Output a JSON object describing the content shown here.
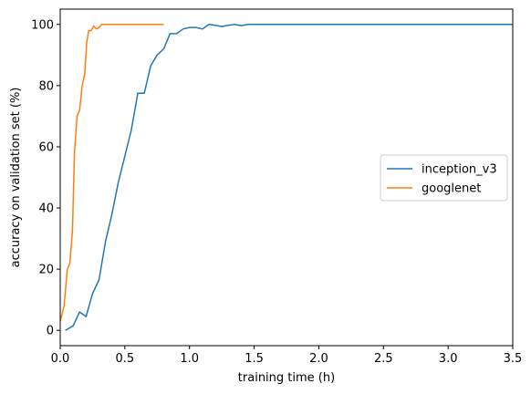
{
  "chart_data": {
    "type": "line",
    "xlabel": "training time (h)",
    "ylabel": "accuracy on validation set (%)",
    "xlim": [
      0.0,
      3.5
    ],
    "ylim": [
      -5,
      105
    ],
    "xticks": [
      0.0,
      0.5,
      1.0,
      1.5,
      2.0,
      2.5,
      3.0,
      3.5
    ],
    "xtick_labels": [
      "0.0",
      "0.5",
      "1.0",
      "1.5",
      "2.0",
      "2.5",
      "3.0",
      "3.5"
    ],
    "yticks": [
      0,
      20,
      40,
      60,
      80,
      100
    ],
    "ytick_labels": [
      "0",
      "20",
      "40",
      "60",
      "80",
      "100"
    ],
    "grid": false,
    "legend_position": "center-right",
    "series": [
      {
        "name": "inception_v3",
        "color": "#1f77b4",
        "points": [
          [
            0.04,
            0
          ],
          [
            0.1,
            1.5
          ],
          [
            0.15,
            6
          ],
          [
            0.2,
            4.5
          ],
          [
            0.25,
            12
          ],
          [
            0.3,
            16.5
          ],
          [
            0.35,
            29
          ],
          [
            0.4,
            38
          ],
          [
            0.45,
            48.5
          ],
          [
            0.5,
            57
          ],
          [
            0.55,
            65.5
          ],
          [
            0.6,
            77.5
          ],
          [
            0.65,
            77.5
          ],
          [
            0.7,
            86.5
          ],
          [
            0.75,
            90
          ],
          [
            0.8,
            92
          ],
          [
            0.85,
            97
          ],
          [
            0.9,
            97
          ],
          [
            0.95,
            98.5
          ],
          [
            1.0,
            99
          ],
          [
            1.05,
            99
          ],
          [
            1.1,
            98.5
          ],
          [
            1.15,
            100
          ],
          [
            1.2,
            99.7
          ],
          [
            1.25,
            99.3
          ],
          [
            1.3,
            99.7
          ],
          [
            1.35,
            100
          ],
          [
            1.4,
            99.6
          ],
          [
            1.45,
            100
          ],
          [
            1.6,
            100
          ],
          [
            2.0,
            100
          ],
          [
            2.5,
            100
          ],
          [
            3.0,
            100
          ],
          [
            3.5,
            100
          ]
        ]
      },
      {
        "name": "googlenet",
        "color": "#ff7f0e",
        "points": [
          [
            0.0,
            3
          ],
          [
            0.03,
            8
          ],
          [
            0.055,
            20
          ],
          [
            0.075,
            22
          ],
          [
            0.095,
            33
          ],
          [
            0.11,
            58
          ],
          [
            0.13,
            70
          ],
          [
            0.15,
            72
          ],
          [
            0.17,
            80
          ],
          [
            0.19,
            84
          ],
          [
            0.205,
            94
          ],
          [
            0.22,
            98
          ],
          [
            0.24,
            98
          ],
          [
            0.26,
            99.5
          ],
          [
            0.28,
            98.5
          ],
          [
            0.3,
            99
          ],
          [
            0.32,
            100
          ],
          [
            0.4,
            100
          ],
          [
            0.5,
            100
          ],
          [
            0.6,
            100
          ],
          [
            0.7,
            100
          ],
          [
            0.8,
            100
          ]
        ]
      }
    ]
  }
}
